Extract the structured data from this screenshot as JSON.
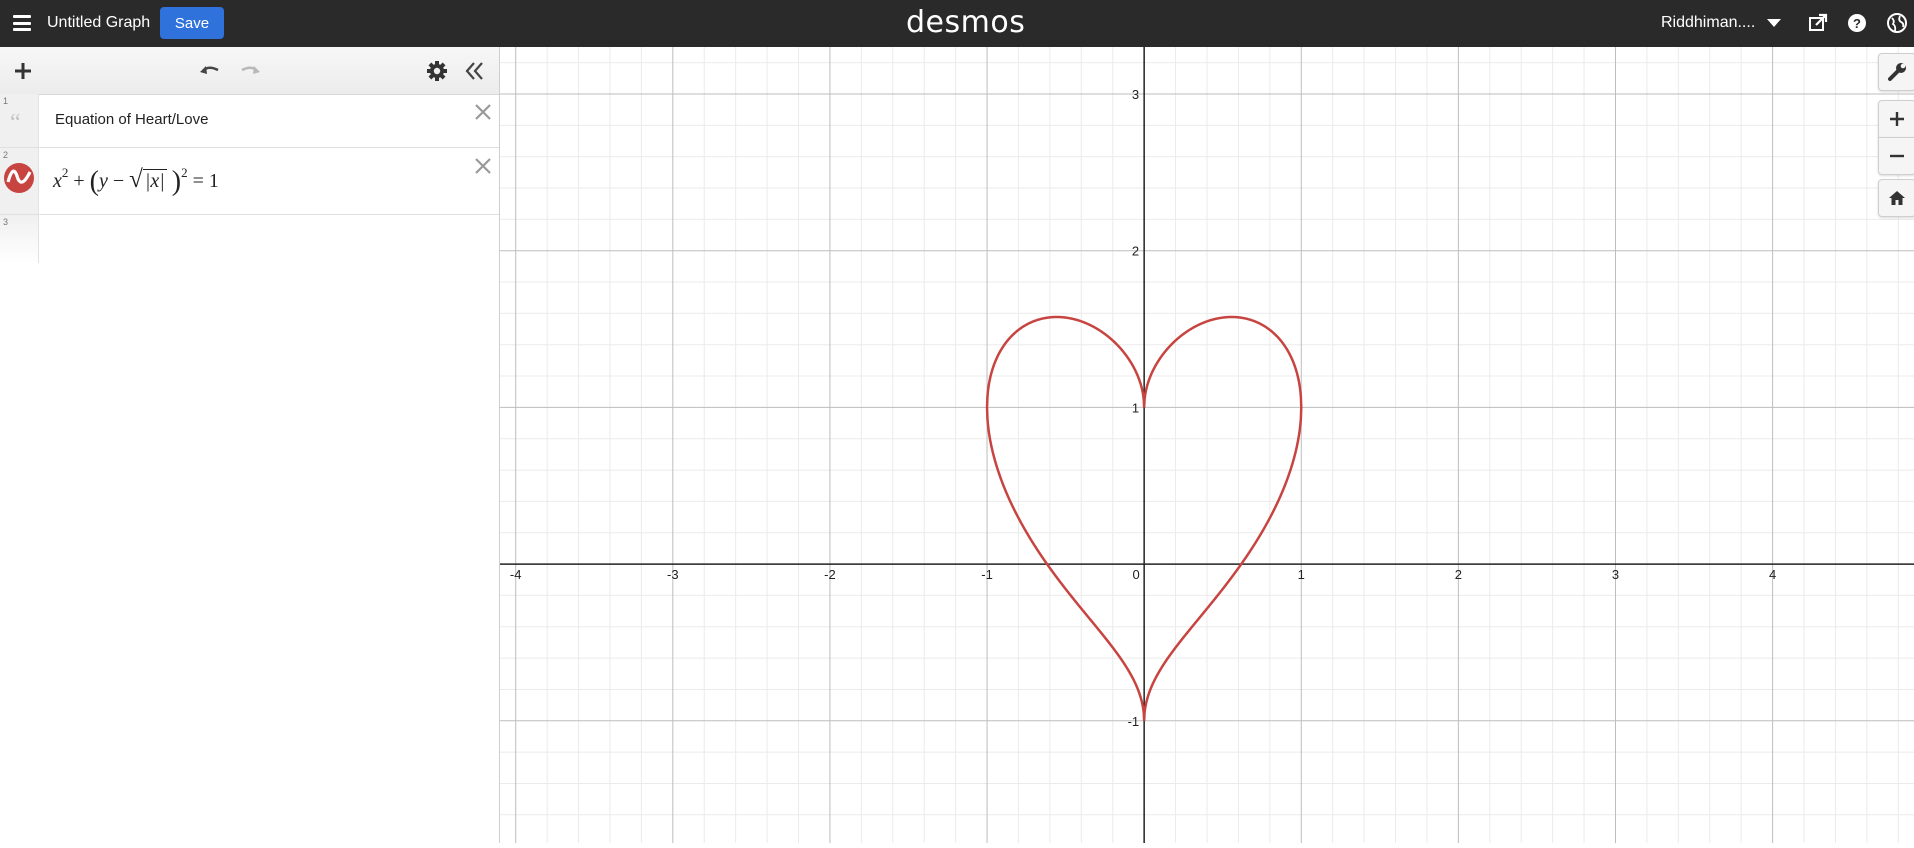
{
  "topbar": {
    "graph_title": "Untitled Graph",
    "save_label": "Save",
    "logo": "desmos",
    "user_name": "Riddhiman...."
  },
  "expressions": [
    {
      "index": "1",
      "type": "note",
      "text": "Equation of Heart/Love"
    },
    {
      "index": "2",
      "type": "expression",
      "latex": "x^2 + (y - sqrt(|x|))^2 = 1",
      "color": "#c74440"
    },
    {
      "index": "3",
      "type": "empty"
    }
  ],
  "math": {
    "x": "x",
    "sq2a": "2",
    "plus": "+",
    "lparen": "(",
    "y": "y",
    "minus": "−",
    "sqrt": "√",
    "absx": "|x|",
    "rparen": ")",
    "sq2b": "2",
    "eq": "= 1"
  },
  "graph": {
    "x_ticks": [
      "-4",
      "-3",
      "-2",
      "-1",
      "0",
      "1",
      "2",
      "3",
      "4"
    ],
    "y_ticks": [
      "3",
      "2",
      "1",
      "-1"
    ],
    "curve_color": "#c74440",
    "xlim": [
      -4.1,
      4.9
    ],
    "ylim": [
      -1.78,
      3.3
    ]
  },
  "icons": {
    "hamburger": "menu-icon",
    "share": "share-icon",
    "help": "help-icon",
    "language": "globe-icon",
    "add": "plus-icon",
    "undo": "undo-icon",
    "redo": "redo-icon",
    "settings": "gear-icon",
    "collapse": "double-chevron-left-icon",
    "wrench": "wrench-icon",
    "zoom_in": "zoom-in-icon",
    "zoom_out": "zoom-out-icon",
    "home": "home-icon"
  }
}
